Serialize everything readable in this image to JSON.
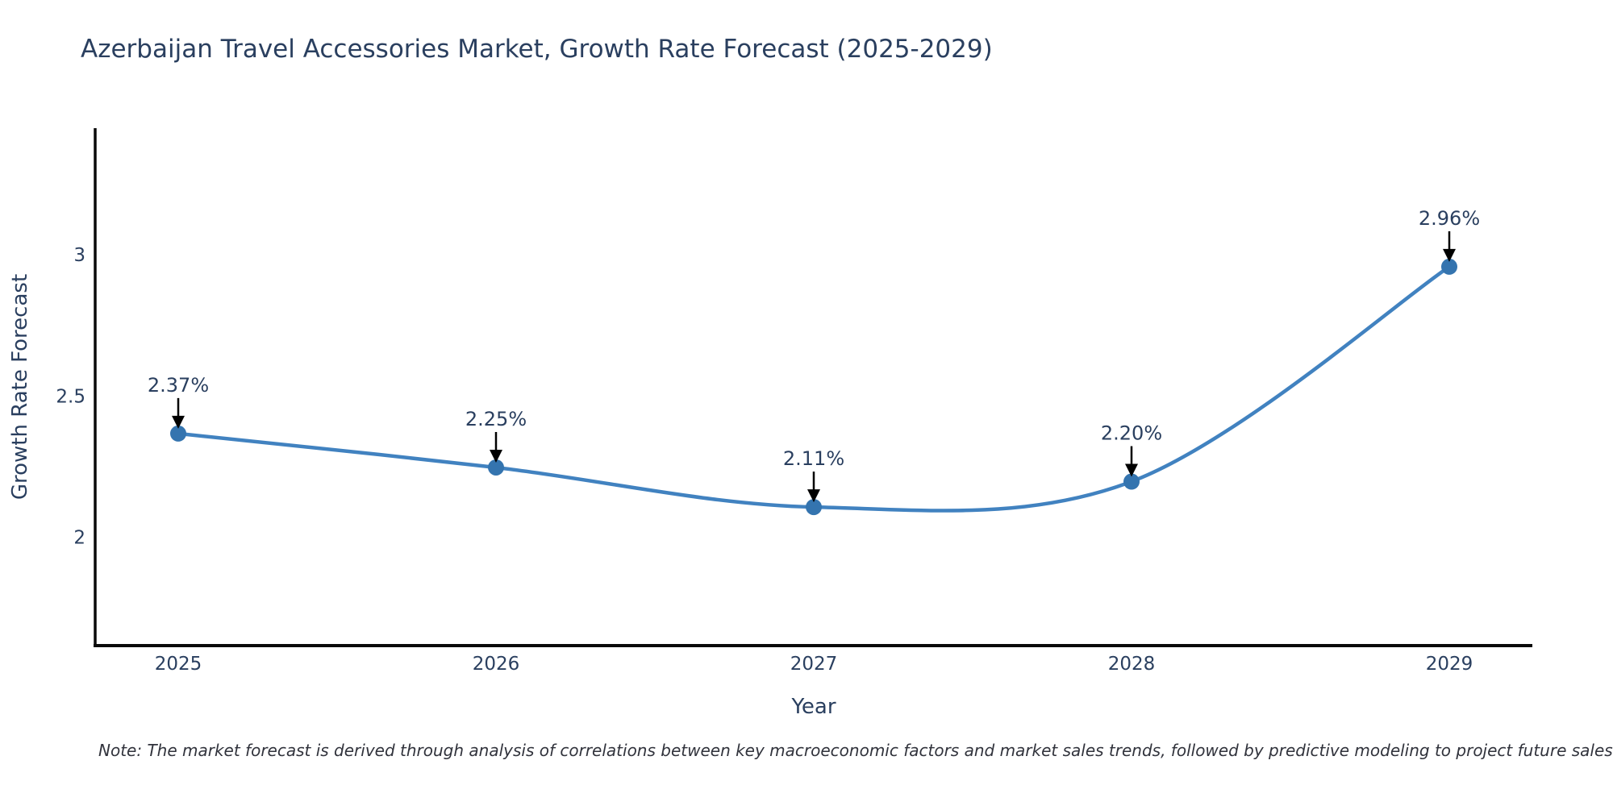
{
  "chart_data": {
    "type": "line",
    "title": "Azerbaijan Travel Accessories Market, Growth Rate Forecast (2025-2029)",
    "x": [
      "2025",
      "2026",
      "2027",
      "2028",
      "2029"
    ],
    "series": [
      {
        "name": "Growth Rate Forecast",
        "values": [
          2.37,
          2.25,
          2.11,
          2.2,
          2.96
        ],
        "point_labels": [
          "2.37%",
          "2.25%",
          "2.11%",
          "2.20%",
          "2.96%"
        ]
      }
    ],
    "xlabel": "Year",
    "ylabel": "Growth Rate Forecast",
    "ytick_values": [
      2,
      2.5,
      3
    ],
    "ytick_labels": [
      "2",
      "2.5",
      "3"
    ],
    "ylim": [
      1.62,
      3.45
    ],
    "line_shape": "spline",
    "markers": true,
    "grid": false,
    "legend_position": "none",
    "annotation_style": "value labels with black arrows pointing down at each data point",
    "note": "Note: The market forecast is derived through analysis of correlations between key macroeconomic factors and market sales trends, followed by predictive modeling to project future sales",
    "colors": {
      "line": "#4182c0",
      "marker": "#3474af",
      "arrow": "#000000",
      "text": "#2a3f5f",
      "axis": "#0a0a0a",
      "background": "#ffffff"
    }
  }
}
